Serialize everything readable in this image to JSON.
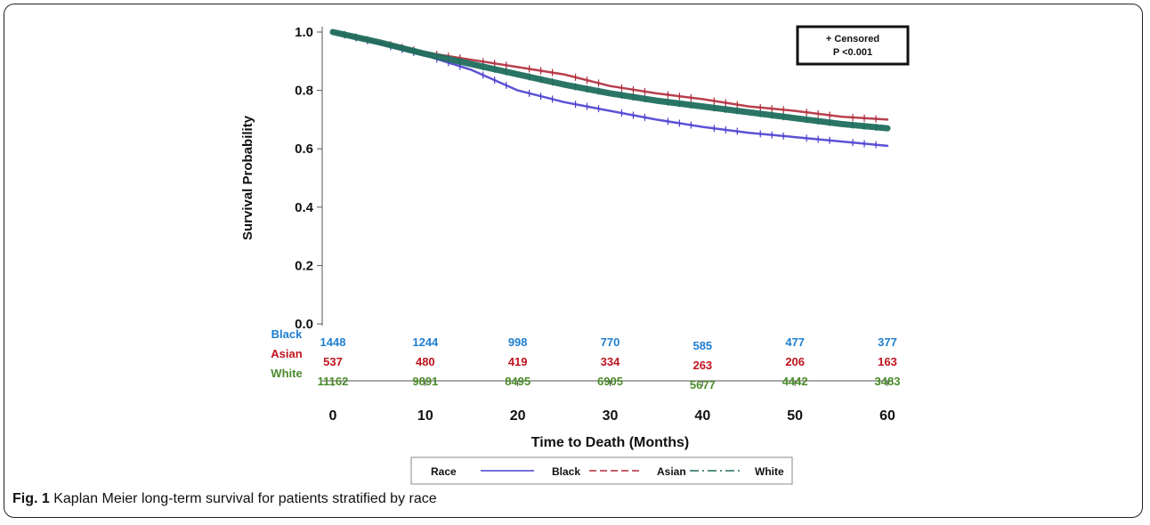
{
  "chart_data": {
    "type": "line",
    "xlabel": "Time to Death (Months)",
    "ylabel": "Survival Probability",
    "xlim": [
      0,
      60
    ],
    "ylim": [
      0,
      1.0
    ],
    "x_ticks": [
      "0",
      "10",
      "20",
      "30",
      "40",
      "50",
      "60"
    ],
    "y_ticks": [
      "0.0",
      "0.2",
      "0.4",
      "0.6",
      "0.8",
      "1.0"
    ],
    "annotation": {
      "line1": "+ Censored",
      "line2": "P <0.001"
    },
    "legend": {
      "title": "Race",
      "position": "bottom"
    },
    "series": [
      {
        "name": "Black",
        "color": "#4a3fd0",
        "x": [
          0,
          5,
          10,
          15,
          20,
          25,
          30,
          35,
          40,
          45,
          50,
          55,
          60
        ],
        "y": [
          1.0,
          0.96,
          0.92,
          0.87,
          0.8,
          0.76,
          0.73,
          0.7,
          0.675,
          0.655,
          0.64,
          0.625,
          0.61
        ]
      },
      {
        "name": "Asian",
        "color": "#b02a3a",
        "x": [
          0,
          5,
          10,
          15,
          20,
          25,
          30,
          35,
          40,
          45,
          50,
          55,
          60
        ],
        "y": [
          1.0,
          0.965,
          0.93,
          0.905,
          0.88,
          0.855,
          0.815,
          0.79,
          0.77,
          0.745,
          0.73,
          0.71,
          0.7
        ]
      },
      {
        "name": "White",
        "color": "#1f6e5e",
        "x": [
          0,
          5,
          10,
          15,
          20,
          25,
          30,
          35,
          40,
          45,
          50,
          55,
          60
        ],
        "y": [
          1.0,
          0.965,
          0.925,
          0.89,
          0.855,
          0.82,
          0.79,
          0.765,
          0.745,
          0.725,
          0.705,
          0.685,
          0.67
        ]
      }
    ],
    "risk_table": [
      {
        "group": "Black",
        "color": "#1f7fd0",
        "counts": [
          "1448",
          "1244",
          "998",
          "770",
          "585",
          "477",
          "377"
        ]
      },
      {
        "group": "Asian",
        "color": "#c0141e",
        "counts": [
          "537",
          "480",
          "419",
          "334",
          "263",
          "206",
          "163"
        ]
      },
      {
        "group": "White",
        "color": "#4a8a2a",
        "counts": [
          "11162",
          "9891",
          "8495",
          "6905",
          "5677",
          "4442",
          "3483"
        ]
      }
    ]
  },
  "caption": {
    "label": "Fig. 1",
    "text": " Kaplan Meier long-term survival for patients stratified by race"
  }
}
